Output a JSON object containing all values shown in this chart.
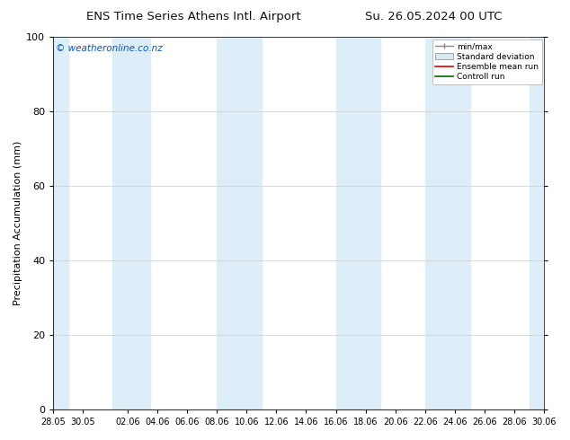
{
  "title_left": "ENS Time Series Athens Intl. Airport",
  "title_right": "Su. 26.05.2024 00 UTC",
  "ylabel": "Precipitation Accumulation (mm)",
  "watermark": "© weatheronline.co.nz",
  "ylim": [
    0,
    100
  ],
  "yticks": [
    0,
    20,
    40,
    60,
    80,
    100
  ],
  "background_color": "#ffffff",
  "band_color": "#ddeef8",
  "legend_labels": [
    "min/max",
    "Standard deviation",
    "Ensemble mean run",
    "Controll run"
  ],
  "x_tick_labels": [
    "28.05",
    "30.05",
    "02.06",
    "04.06",
    "06.06",
    "08.06",
    "10.06",
    "12.06",
    "14.06",
    "16.06",
    "18.06",
    "20.06",
    "22.06",
    "24.06",
    "26.06",
    "28.06",
    "30.06"
  ],
  "x_tick_positions": [
    0,
    2,
    5,
    7,
    9,
    11,
    13,
    15,
    17,
    19,
    21,
    23,
    25,
    27,
    29,
    31,
    33
  ],
  "shaded_bands": [
    [
      0.0,
      1.0
    ],
    [
      4.0,
      5.0
    ],
    [
      5.0,
      6.5
    ],
    [
      11.0,
      12.5
    ],
    [
      12.5,
      14.0
    ],
    [
      19.0,
      20.5
    ],
    [
      20.5,
      22.0
    ],
    [
      25.0,
      26.5
    ],
    [
      26.5,
      28.0
    ],
    [
      32.0,
      33.0
    ]
  ],
  "xlim": [
    0,
    33
  ]
}
